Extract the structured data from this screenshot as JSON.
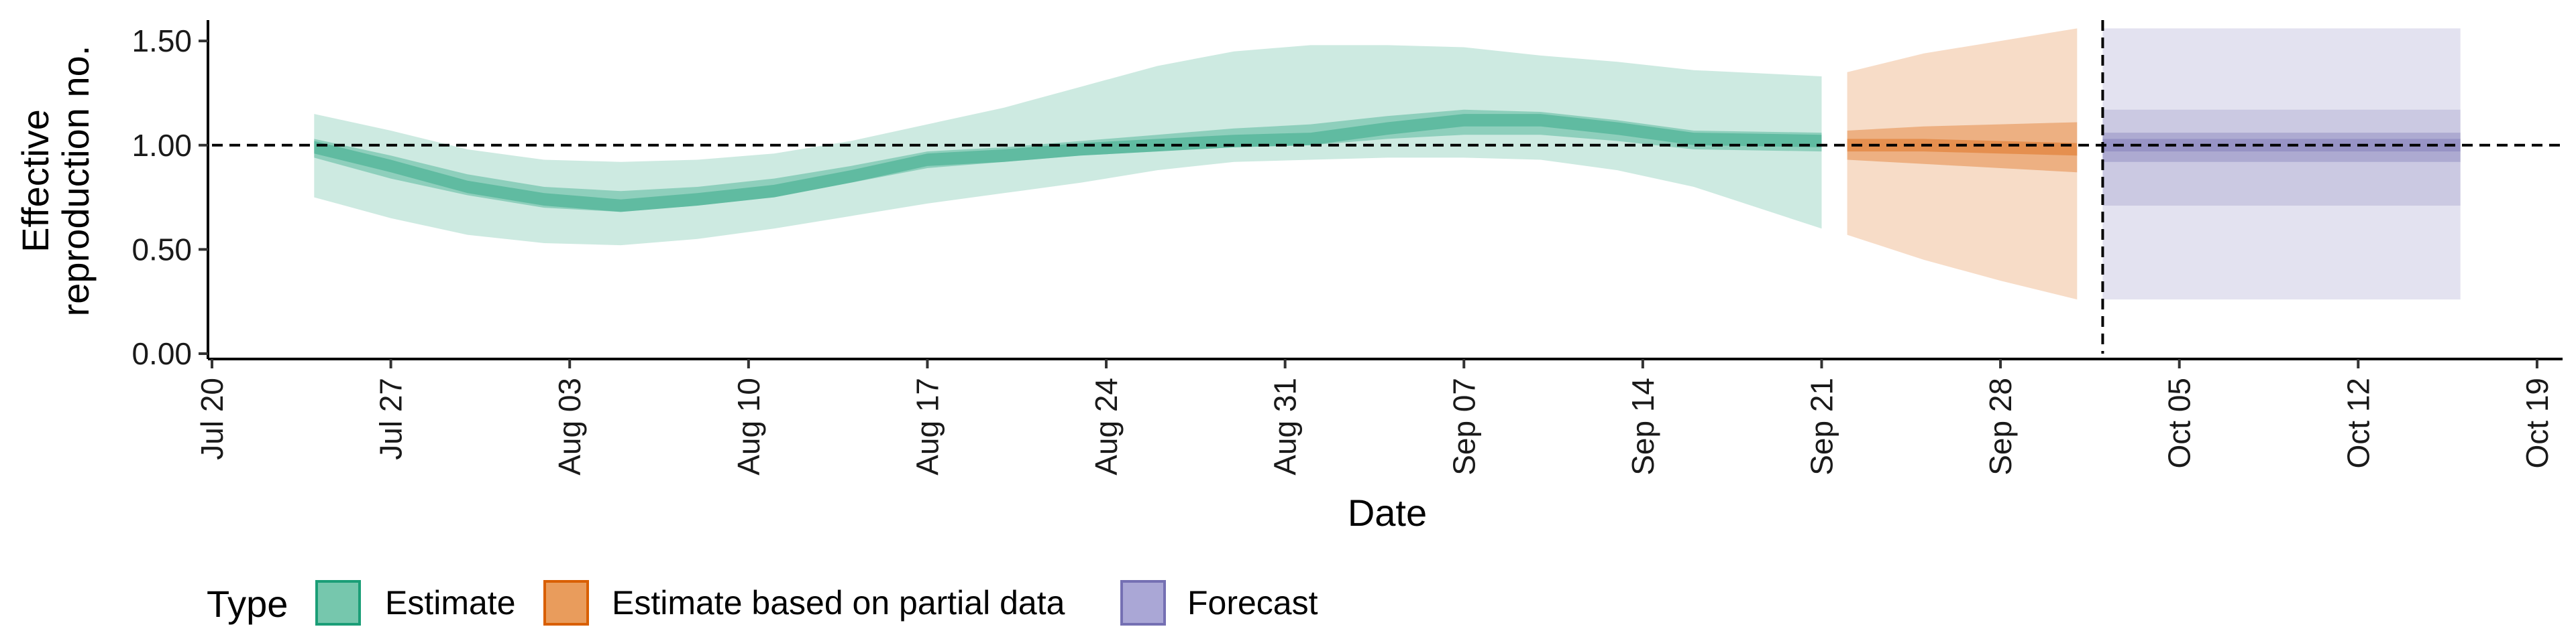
{
  "chart_data": {
    "type": "area",
    "xlabel": "Date",
    "ylabel_lines": [
      "Effective",
      "reproduction no."
    ],
    "x_ticks": [
      "2020-07-20",
      "2020-07-27",
      "2020-08-03",
      "2020-08-10",
      "2020-08-17",
      "2020-08-24",
      "2020-08-31",
      "2020-09-07",
      "2020-09-14",
      "2020-09-21",
      "2020-09-28",
      "2020-10-05",
      "2020-10-12",
      "2020-10-19"
    ],
    "x_tick_labels": [
      "Jul 20",
      "Jul 27",
      "Aug 03",
      "Aug 10",
      "Aug 17",
      "Aug 24",
      "Aug 31",
      "Sep 07",
      "Sep 14",
      "Sep 21",
      "Sep 28",
      "Oct 05",
      "Oct 12",
      "Oct 19"
    ],
    "y_ticks": [
      0,
      0.5,
      1.0,
      1.5
    ],
    "y_tick_labels": [
      "0.00",
      "0.50",
      "1.00",
      "1.50"
    ],
    "ylim": [
      0,
      1.6
    ],
    "xlim": [
      "2020-07-20",
      "2020-10-20"
    ],
    "reference_line_y": 1.0,
    "forecast_start_marker": "2020-10-02",
    "legend_title": "Type",
    "legend_position": "bottom",
    "colors": {
      "Estimate": "#1b9e77",
      "Estimate based on partial data": "#d95f02",
      "Forecast": "#7570b3"
    },
    "series": [
      {
        "name": "Estimate",
        "dates": [
          "2020-07-24",
          "2020-07-27",
          "2020-07-30",
          "2020-08-02",
          "2020-08-05",
          "2020-08-08",
          "2020-08-11",
          "2020-08-14",
          "2020-08-17",
          "2020-08-20",
          "2020-08-23",
          "2020-08-26",
          "2020-08-29",
          "2020-09-01",
          "2020-09-04",
          "2020-09-07",
          "2020-09-10",
          "2020-09-13",
          "2020-09-16",
          "2020-09-21"
        ],
        "median": [
          0.99,
          0.9,
          0.8,
          0.74,
          0.71,
          0.74,
          0.78,
          0.85,
          0.93,
          0.95,
          0.98,
          1.0,
          1.02,
          1.03,
          1.08,
          1.12,
          1.12,
          1.08,
          1.03,
          1.02
        ],
        "lower_50": [
          0.94,
          0.84,
          0.76,
          0.7,
          0.68,
          0.71,
          0.75,
          0.82,
          0.89,
          0.92,
          0.95,
          0.97,
          0.99,
          1.0,
          1.03,
          1.05,
          1.05,
          1.02,
          0.98,
          0.97
        ],
        "upper_50": [
          1.03,
          0.95,
          0.86,
          0.8,
          0.78,
          0.8,
          0.84,
          0.9,
          0.97,
          0.99,
          1.02,
          1.05,
          1.08,
          1.1,
          1.14,
          1.17,
          1.16,
          1.12,
          1.07,
          1.06
        ],
        "lower_90": [
          0.75,
          0.65,
          0.57,
          0.53,
          0.52,
          0.55,
          0.6,
          0.66,
          0.72,
          0.77,
          0.82,
          0.88,
          0.92,
          0.93,
          0.94,
          0.94,
          0.93,
          0.88,
          0.8,
          0.6
        ],
        "upper_90": [
          1.15,
          1.07,
          0.98,
          0.93,
          0.92,
          0.93,
          0.96,
          1.02,
          1.1,
          1.18,
          1.28,
          1.38,
          1.45,
          1.48,
          1.48,
          1.47,
          1.43,
          1.4,
          1.36,
          1.33
        ]
      },
      {
        "name": "Estimate based on partial data",
        "dates": [
          "2020-09-22",
          "2020-09-25",
          "2020-09-28",
          "2020-10-01"
        ],
        "median": [
          1.0,
          1.0,
          0.99,
          0.98
        ],
        "lower_50": [
          0.93,
          0.91,
          0.89,
          0.87
        ],
        "upper_50": [
          1.07,
          1.09,
          1.1,
          1.11
        ],
        "lower_90": [
          0.57,
          0.45,
          0.35,
          0.26
        ],
        "upper_90": [
          1.35,
          1.44,
          1.5,
          1.56
        ]
      },
      {
        "name": "Forecast",
        "dates": [
          "2020-10-02",
          "2020-10-16"
        ],
        "median": [
          1.0,
          1.0
        ],
        "lower_50": [
          0.92,
          0.92
        ],
        "upper_50": [
          1.06,
          1.06
        ],
        "lower_90": [
          0.71,
          0.71
        ],
        "upper_90": [
          1.17,
          1.17
        ],
        "lower_outer": [
          0.26,
          0.26
        ],
        "upper_outer": [
          1.56,
          1.56
        ]
      }
    ]
  }
}
